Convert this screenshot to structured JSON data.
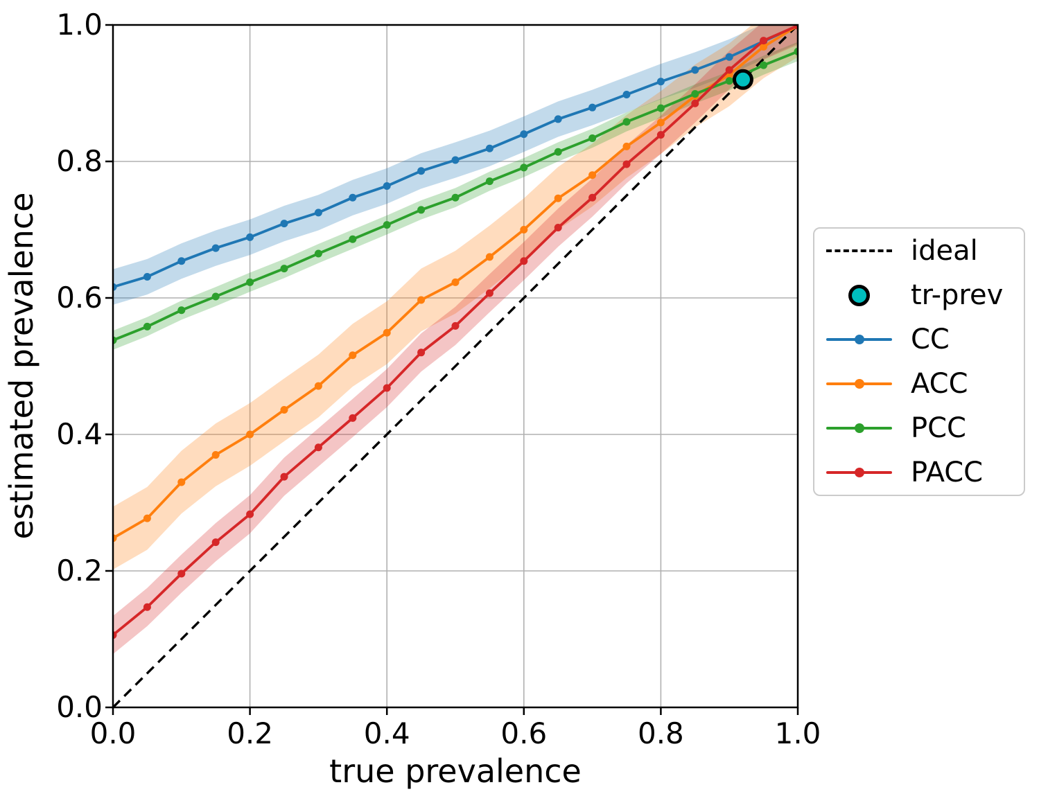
{
  "chart_data": {
    "type": "line",
    "title": "",
    "xlabel": "true prevalence",
    "ylabel": "estimated prevalence",
    "xlim": [
      0.0,
      1.0
    ],
    "ylim": [
      0.0,
      1.0
    ],
    "grid": true,
    "grid_color": "#b0b0b0",
    "x_ticks": [
      "0.0",
      "0.2",
      "0.4",
      "0.6",
      "0.8",
      "1.0"
    ],
    "y_ticks": [
      "0.0",
      "0.2",
      "0.4",
      "0.6",
      "0.8",
      "1.0"
    ],
    "x_tick_vals": [
      0.0,
      0.2,
      0.4,
      0.6,
      0.8,
      1.0
    ],
    "y_tick_vals": [
      0.0,
      0.2,
      0.4,
      0.6,
      0.8,
      1.0
    ],
    "x": [
      0.0,
      0.05,
      0.1,
      0.15,
      0.2,
      0.25,
      0.3,
      0.35,
      0.4,
      0.45,
      0.5,
      0.55,
      0.6,
      0.65,
      0.7,
      0.75,
      0.8,
      0.85,
      0.9,
      0.95,
      1.0
    ],
    "series": [
      {
        "name": "CC",
        "color": "#1f77b4",
        "band_halfwidth": 0.026,
        "values": [
          0.616,
          0.631,
          0.654,
          0.673,
          0.689,
          0.709,
          0.725,
          0.747,
          0.764,
          0.786,
          0.802,
          0.819,
          0.84,
          0.862,
          0.879,
          0.898,
          0.917,
          0.934,
          0.953,
          0.976,
          0.999
        ]
      },
      {
        "name": "ACC",
        "color": "#ff7f0e",
        "band_halfwidth": 0.046,
        "values": [
          0.248,
          0.277,
          0.33,
          0.37,
          0.4,
          0.436,
          0.471,
          0.516,
          0.549,
          0.597,
          0.623,
          0.66,
          0.7,
          0.746,
          0.78,
          0.822,
          0.857,
          0.896,
          0.927,
          0.968,
          0.999
        ]
      },
      {
        "name": "PCC",
        "color": "#2ca02c",
        "band_halfwidth": 0.014,
        "values": [
          0.538,
          0.558,
          0.582,
          0.602,
          0.623,
          0.643,
          0.665,
          0.686,
          0.707,
          0.729,
          0.747,
          0.771,
          0.791,
          0.814,
          0.834,
          0.858,
          0.878,
          0.899,
          0.918,
          0.941,
          0.961
        ]
      },
      {
        "name": "PACC",
        "color": "#d62728",
        "band_halfwidth": 0.028,
        "values": [
          0.106,
          0.147,
          0.196,
          0.242,
          0.283,
          0.338,
          0.381,
          0.424,
          0.468,
          0.52,
          0.559,
          0.607,
          0.654,
          0.703,
          0.747,
          0.796,
          0.839,
          0.885,
          0.934,
          0.977,
          0.999
        ]
      }
    ],
    "ideal": {
      "label": "ideal",
      "style": "dashed",
      "color": "#000000",
      "x": [
        0.0,
        1.0
      ],
      "y": [
        0.0,
        1.0
      ]
    },
    "tr_prev": {
      "label": "tr-prev",
      "x": 0.92,
      "y": 0.92,
      "color": "#00bfbf"
    },
    "legend": {
      "position": "center right",
      "items": [
        {
          "label": "ideal",
          "swatch": "dashed-line",
          "color": "#000000"
        },
        {
          "label": "tr-prev",
          "swatch": "circle",
          "color": "#00bfbf"
        },
        {
          "label": "CC",
          "swatch": "line-dot",
          "color": "#1f77b4"
        },
        {
          "label": "ACC",
          "swatch": "line-dot",
          "color": "#ff7f0e"
        },
        {
          "label": "PCC",
          "swatch": "line-dot",
          "color": "#2ca02c"
        },
        {
          "label": "PACC",
          "swatch": "line-dot",
          "color": "#d62728"
        }
      ]
    }
  }
}
